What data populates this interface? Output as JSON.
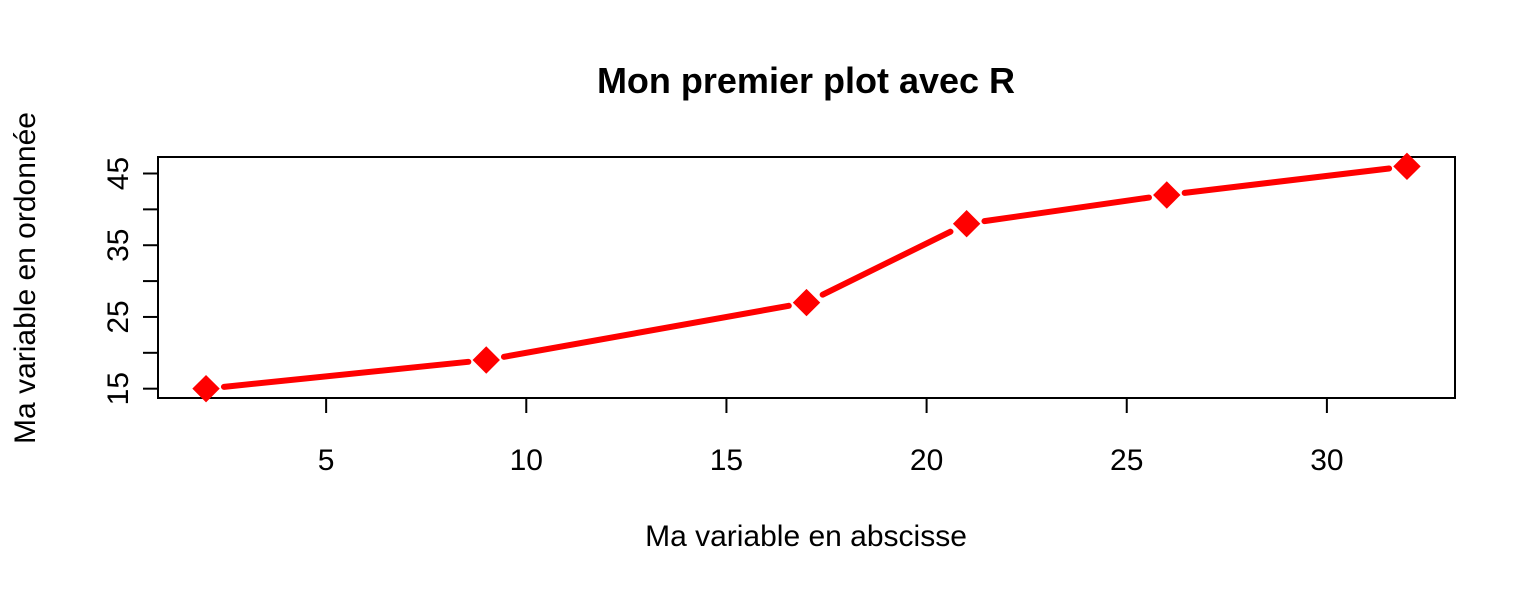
{
  "chart_data": {
    "type": "line",
    "title": "Mon premier plot avec R",
    "xlabel": "Ma variable en abscisse",
    "ylabel": "Ma variable en ordonnée",
    "x": [
      2,
      9,
      17,
      21,
      26,
      32
    ],
    "series": [
      {
        "values": [
          15,
          19,
          27,
          38,
          42,
          46
        ],
        "color": "#ff0000",
        "marker": "diamond"
      }
    ],
    "xlim": [
      0.8,
      33.2
    ],
    "ylim": [
      13.7,
      47.3
    ],
    "xticks": [
      5,
      10,
      15,
      20,
      25,
      30
    ],
    "yticks": [
      15,
      20,
      25,
      30,
      35,
      40,
      45
    ],
    "ytick_labels": [
      "15",
      "",
      "25",
      "",
      "35",
      "",
      "45"
    ],
    "grid": false,
    "legend": "none"
  }
}
